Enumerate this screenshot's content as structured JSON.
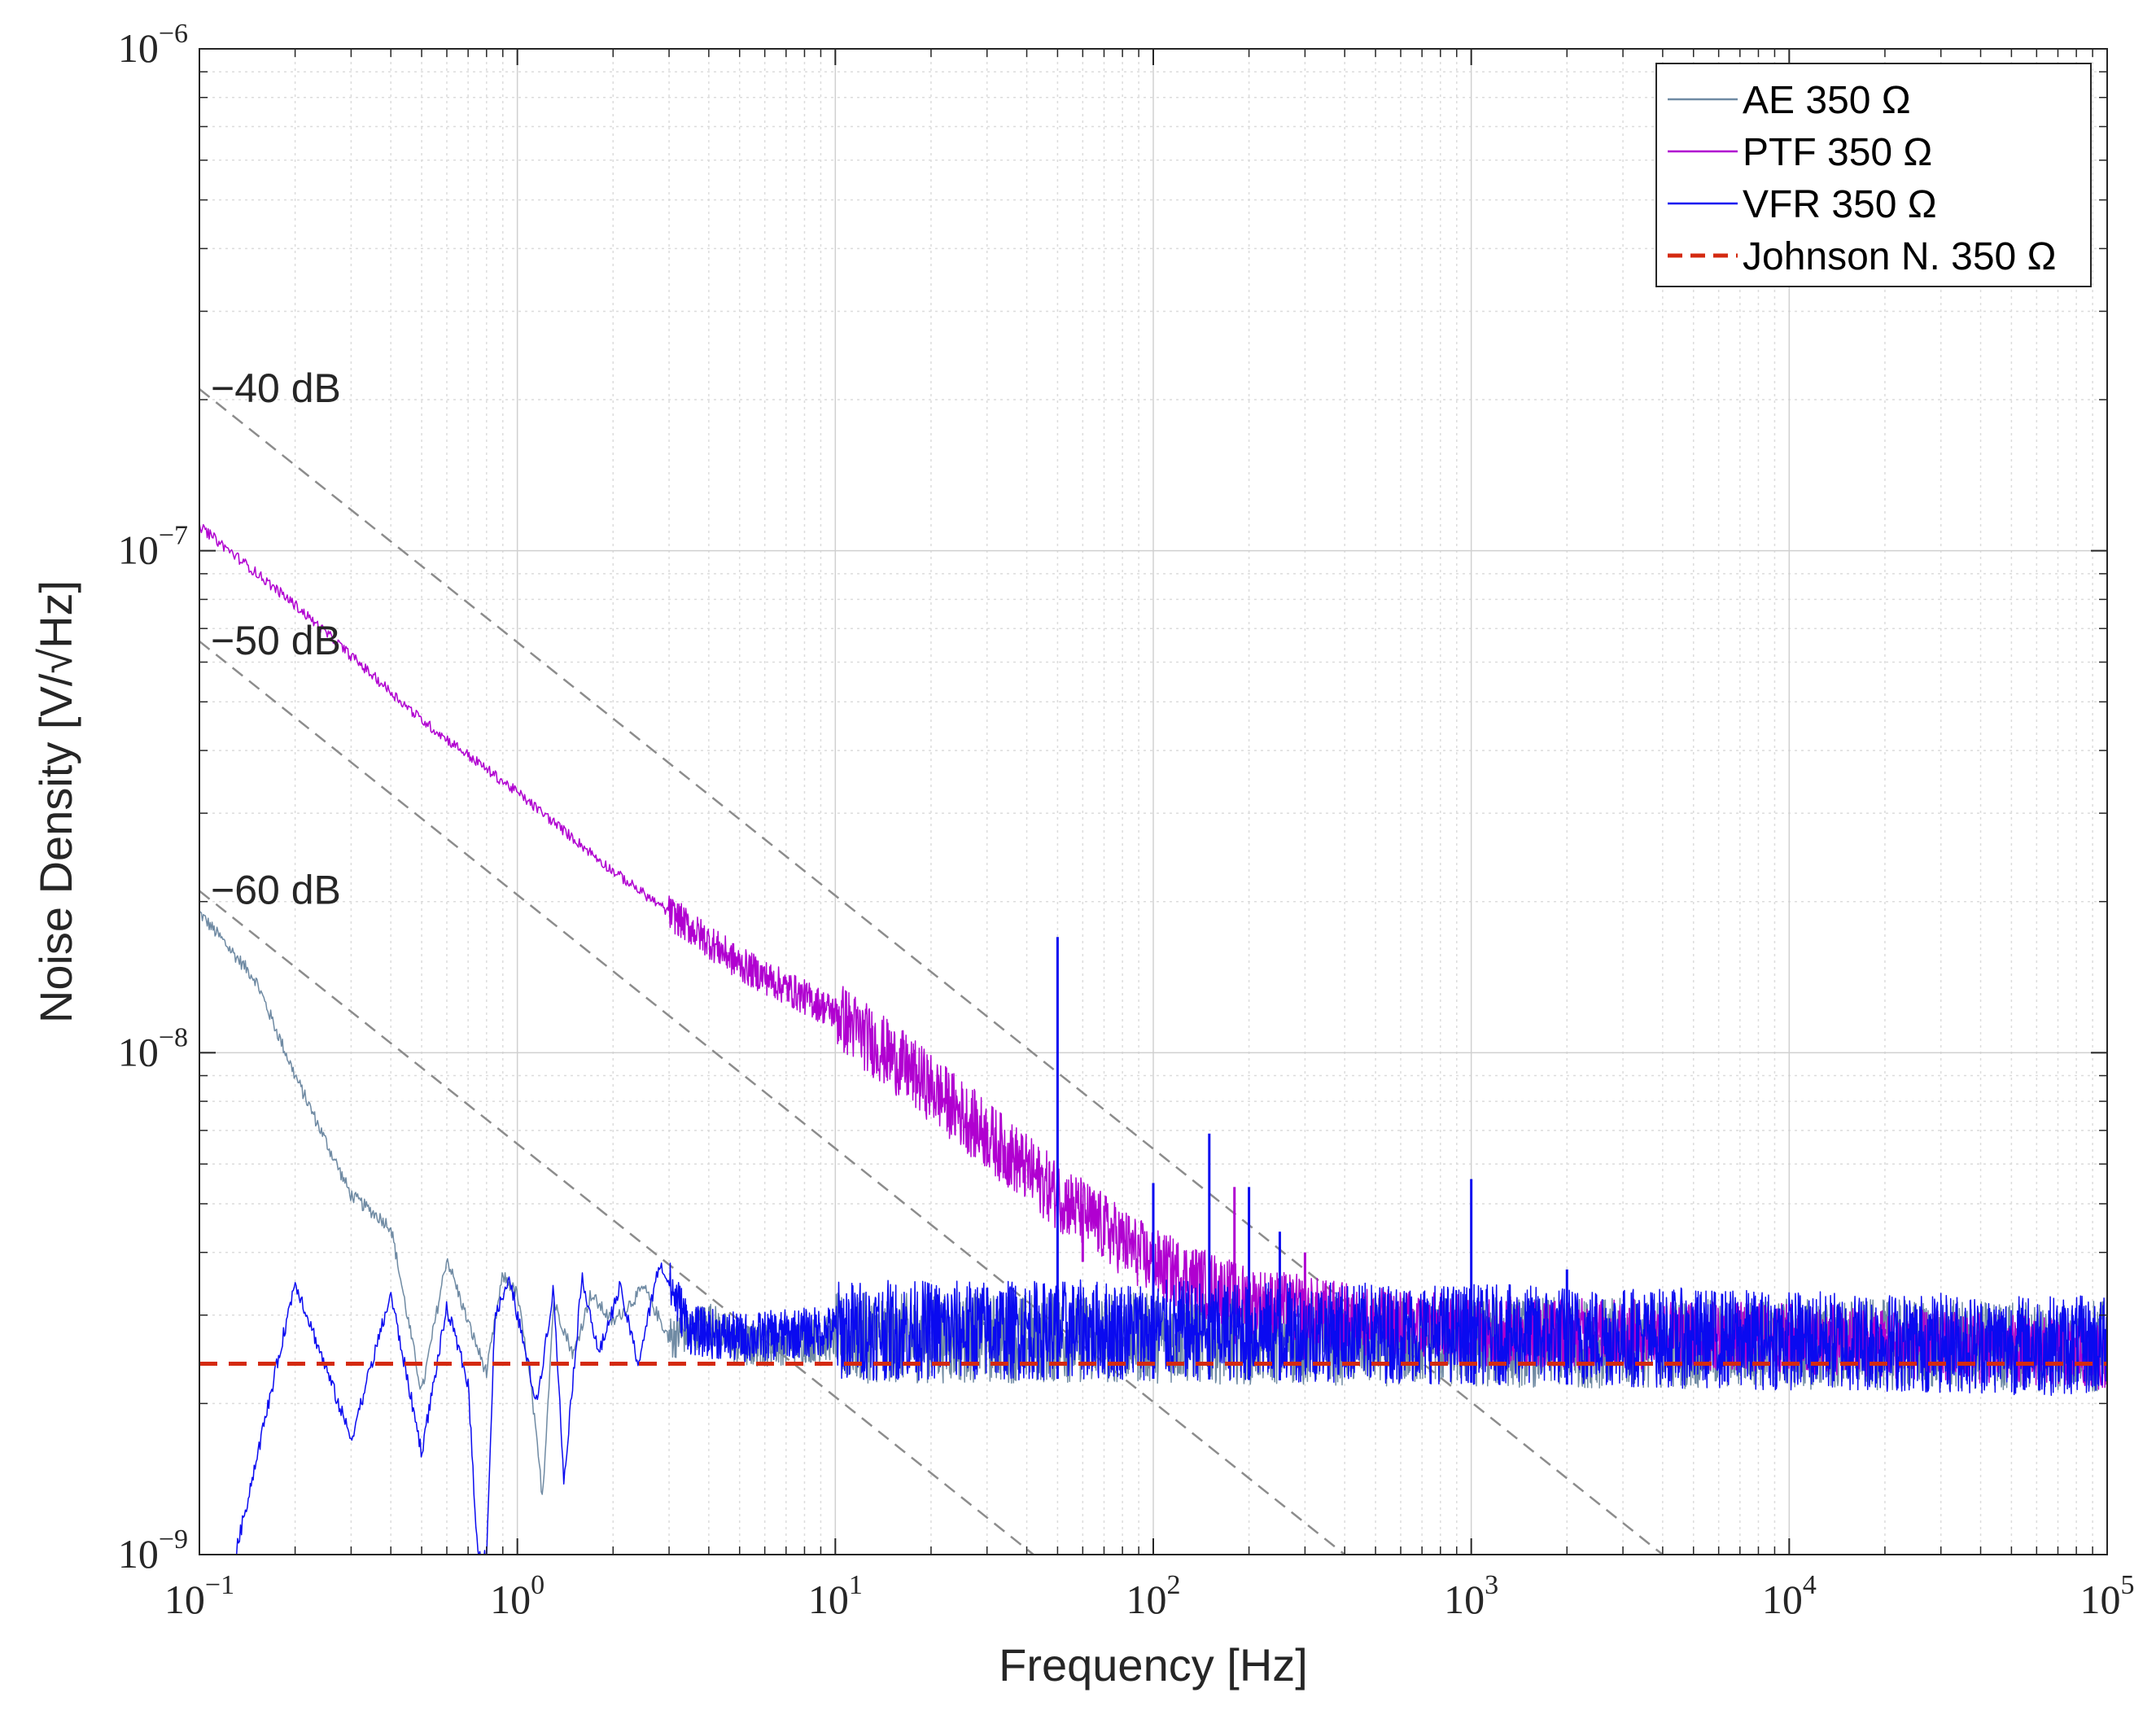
{
  "chart_data": {
    "type": "line",
    "xlabel": "Frequency [Hz]",
    "ylabel": "Noise Density [V/√Hz]",
    "xscale": "log",
    "yscale": "log",
    "xlim": [
      0.1,
      100000
    ],
    "ylim": [
      1e-09,
      1e-06
    ],
    "grid": true,
    "minor_grid": true,
    "legend_position": "top-right",
    "x_ticks": [
      {
        "value": 0.1,
        "base": "10",
        "exp": "−1"
      },
      {
        "value": 1,
        "base": "10",
        "exp": "0"
      },
      {
        "value": 10,
        "base": "10",
        "exp": "1"
      },
      {
        "value": 100,
        "base": "10",
        "exp": "2"
      },
      {
        "value": 1000,
        "base": "10",
        "exp": "3"
      },
      {
        "value": 10000,
        "base": "10",
        "exp": "4"
      },
      {
        "value": 100000,
        "base": "10",
        "exp": "5"
      }
    ],
    "y_ticks": [
      {
        "value": 1e-09,
        "base": "10",
        "exp": "−9"
      },
      {
        "value": 1e-08,
        "base": "10",
        "exp": "−8"
      },
      {
        "value": 1e-07,
        "base": "10",
        "exp": "−7"
      },
      {
        "value": 1e-06,
        "base": "10",
        "exp": "−6"
      }
    ],
    "series": [
      {
        "name": "AE 350 Ω",
        "color": "#6f8aa3",
        "style": "solid",
        "noise": 0.09,
        "points": [
          [
            0.1,
            1.9e-08
          ],
          [
            0.15,
            1.4e-08
          ],
          [
            0.2,
            9e-09
          ],
          [
            0.3,
            5.2e-09
          ],
          [
            0.4,
            4.5e-09
          ],
          [
            0.5,
            2.1e-09
          ],
          [
            0.6,
            3.9e-09
          ],
          [
            0.7,
            2.9e-09
          ],
          [
            0.8,
            2.3e-09
          ],
          [
            0.9,
            3.6e-09
          ],
          [
            1.0,
            3.3e-09
          ],
          [
            1.1,
            2.2e-09
          ],
          [
            1.2,
            1.3e-09
          ],
          [
            1.3,
            3.2e-09
          ],
          [
            1.5,
            2.5e-09
          ],
          [
            1.7,
            3.3e-09
          ],
          [
            2,
            2.9e-09
          ],
          [
            2.5,
            3.4e-09
          ],
          [
            3,
            2.7e-09
          ],
          [
            4,
            2.9e-09
          ],
          [
            5,
            2.6e-09
          ],
          [
            10,
            2.7e-09
          ],
          [
            100,
            2.7e-09
          ],
          [
            1000,
            2.65e-09
          ],
          [
            100000,
            2.6e-09
          ]
        ],
        "spikes": []
      },
      {
        "name": "PTF 350 Ω",
        "color": "#b000d0",
        "style": "solid",
        "noise": 0.07,
        "points": [
          [
            0.1,
            1.12e-07
          ],
          [
            0.2,
            7.8e-08
          ],
          [
            0.5,
            4.6e-08
          ],
          [
            1,
            3.3e-08
          ],
          [
            2,
            2.3e-08
          ],
          [
            5,
            1.5e-08
          ],
          [
            10,
            1.2e-08
          ],
          [
            20,
            8.5e-09
          ],
          [
            50,
            5.2e-09
          ],
          [
            100,
            3.8e-09
          ],
          [
            200,
            3.2e-09
          ],
          [
            500,
            2.9e-09
          ],
          [
            1000,
            2.8e-09
          ],
          [
            10000,
            2.7e-09
          ],
          [
            100000,
            2.5e-09
          ]
        ],
        "spikes": [
          [
            60,
            5e-09
          ],
          [
            180,
            5.4e-09
          ],
          [
            300,
            4e-09
          ]
        ]
      },
      {
        "name": "VFR 350 Ω",
        "color": "#0a0af0",
        "style": "solid",
        "noise": 0.1,
        "points": [
          [
            0.13,
            1e-09
          ],
          [
            0.2,
            3.5e-09
          ],
          [
            0.3,
            1.7e-09
          ],
          [
            0.4,
            3.3e-09
          ],
          [
            0.5,
            1.6e-09
          ],
          [
            0.6,
            3.1e-09
          ],
          [
            0.7,
            2.2e-09
          ],
          [
            0.75,
            1e-09
          ],
          [
            0.8,
            1e-09
          ],
          [
            0.85,
            3e-09
          ],
          [
            0.95,
            3.5e-09
          ],
          [
            1.05,
            2.6e-09
          ],
          [
            1.15,
            2e-09
          ],
          [
            1.3,
            3.4e-09
          ],
          [
            1.4,
            1.4e-09
          ],
          [
            1.6,
            3.6e-09
          ],
          [
            1.8,
            2.5e-09
          ],
          [
            2.1,
            3.4e-09
          ],
          [
            2.4,
            2.4e-09
          ],
          [
            2.8,
            3.8e-09
          ],
          [
            3.5,
            2.8e-09
          ],
          [
            5,
            2.7e-09
          ],
          [
            10,
            2.8e-09
          ],
          [
            100,
            2.8e-09
          ],
          [
            1000,
            2.75e-09
          ],
          [
            100000,
            2.6e-09
          ]
        ],
        "spikes": [
          [
            50,
            1.7e-08
          ],
          [
            100,
            5.5e-09
          ],
          [
            150,
            6.9e-09
          ],
          [
            200,
            5.4e-09
          ],
          [
            250,
            4.4e-09
          ],
          [
            1000,
            5.6e-09
          ],
          [
            2000,
            3.7e-09
          ]
        ]
      },
      {
        "name": "Johnson N. 350 Ω",
        "color": "#d42a10",
        "style": "dashed",
        "noise": 0,
        "points": [
          [
            0.1,
            2.4e-09
          ],
          [
            100000,
            2.4e-09
          ]
        ],
        "spikes": []
      }
    ],
    "reference_lines": [
      {
        "label": "−40 dB",
        "points": [
          [
            0.1,
            2.1e-07
          ],
          [
            4000,
            1e-09
          ]
        ]
      },
      {
        "label": "−50 dB",
        "points": [
          [
            0.1,
            6.6e-08
          ],
          [
            400,
            1e-09
          ]
        ]
      },
      {
        "label": "−60 dB",
        "points": [
          [
            0.1,
            2.1e-08
          ],
          [
            42,
            1e-09
          ]
        ]
      }
    ]
  }
}
